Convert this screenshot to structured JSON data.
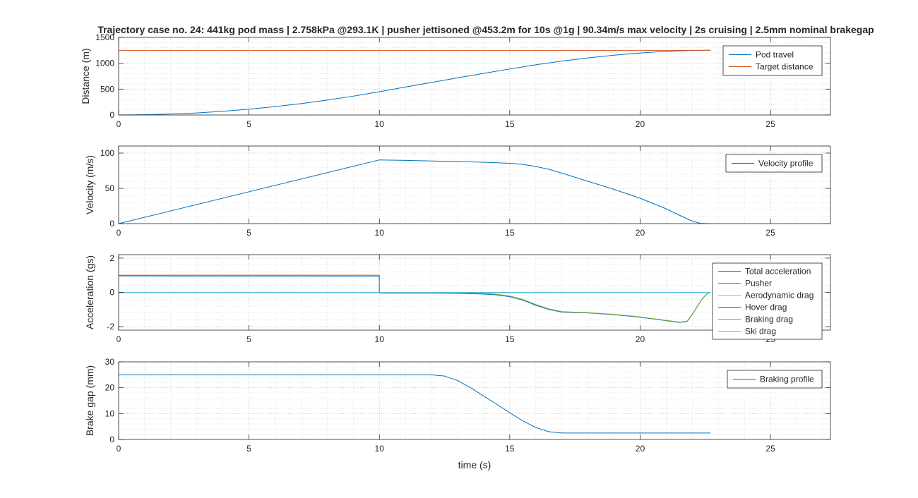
{
  "figure": {
    "title": "Trajectory case no. 24: 441kg pod mass | 2.758kPa @293.1K | pusher jettisoned @453.2m for 10s @1g | 90.34m/s max velocity | 2s cruising | 2.5mm nominal brakegap"
  },
  "chart_data": [
    {
      "type": "line",
      "ylabel": "Distance (m)",
      "xlim": [
        0,
        27.3
      ],
      "ylim": [
        0,
        1500
      ],
      "xticks": [
        0,
        5,
        10,
        15,
        20,
        25
      ],
      "yticks": [
        0,
        500,
        1000,
        1500
      ],
      "grid": true,
      "legend_position": "top-right",
      "series": [
        {
          "name": "Pod travel",
          "color": "#0072BD",
          "x": [
            0,
            1,
            2,
            3,
            4,
            5,
            6,
            7,
            8,
            9,
            10,
            11,
            12,
            13,
            14,
            15,
            16,
            17,
            18,
            19,
            20,
            21,
            22,
            22.7
          ],
          "y": [
            0,
            4.5,
            18,
            40,
            72,
            112,
            162,
            220,
            288,
            364,
            450,
            540,
            629,
            717,
            804,
            889,
            970,
            1042,
            1103,
            1155,
            1198,
            1230,
            1248,
            1253
          ]
        },
        {
          "name": "Target distance",
          "color": "#D95319",
          "x": [
            0,
            22.7
          ],
          "y": [
            1250,
            1250
          ]
        }
      ]
    },
    {
      "type": "line",
      "ylabel": "Velocity (m/s)",
      "xlim": [
        0,
        27.3
      ],
      "ylim": [
        0,
        110
      ],
      "xticks": [
        0,
        5,
        10,
        15,
        20,
        25
      ],
      "yticks": [
        0,
        50,
        100
      ],
      "grid": true,
      "legend_position": "top-right",
      "series": [
        {
          "name": "Velocity profile",
          "color": "#0072BD",
          "x": [
            0,
            10,
            11,
            12,
            13,
            14,
            15,
            15.5,
            16,
            16.5,
            17,
            18,
            19,
            20,
            21,
            21.5,
            22,
            22.3,
            22.5,
            22.7
          ],
          "y": [
            0,
            90.3,
            89.6,
            88.8,
            88,
            87,
            85.5,
            84,
            81,
            77,
            71.5,
            60,
            48.5,
            36,
            21,
            12,
            3.5,
            0.5,
            0,
            0
          ]
        }
      ]
    },
    {
      "type": "line",
      "ylabel": "Acceleration (gs)",
      "xlim": [
        0,
        27.3
      ],
      "ylim": [
        -2.2,
        2.2
      ],
      "xticks": [
        0,
        5,
        10,
        15,
        20,
        25
      ],
      "yticks": [
        -2,
        0,
        2
      ],
      "grid": true,
      "legend_position": "right",
      "series": [
        {
          "name": "Total acceleration",
          "color": "#0072BD",
          "x": [
            0,
            9.99,
            10,
            11,
            12,
            13,
            14,
            14.5,
            15,
            15.5,
            16,
            16.5,
            17,
            18,
            19,
            20,
            20.5,
            21,
            21.5,
            21.8,
            22,
            22.2,
            22.4,
            22.6,
            22.7
          ],
          "y": [
            0.96,
            0.95,
            -0.05,
            -0.05,
            -0.05,
            -0.06,
            -0.1,
            -0.15,
            -0.25,
            -0.45,
            -0.75,
            -1.0,
            -1.15,
            -1.2,
            -1.3,
            -1.45,
            -1.55,
            -1.65,
            -1.75,
            -1.7,
            -1.3,
            -0.8,
            -0.35,
            -0.05,
            0
          ]
        },
        {
          "name": "Pusher",
          "color": "#D95319",
          "x": [
            0,
            10,
            10,
            22.7
          ],
          "y": [
            1.0,
            1.0,
            0,
            0
          ]
        },
        {
          "name": "Aerodynamic drag",
          "color": "#EDB120",
          "x": [
            0,
            10,
            15,
            20,
            22.7
          ],
          "y": [
            -0.02,
            -0.03,
            -0.03,
            -0.01,
            0
          ]
        },
        {
          "name": "Hover drag",
          "color": "#7E2F8E",
          "x": [
            0,
            22.7
          ],
          "y": [
            0,
            0
          ]
        },
        {
          "name": "Braking drag",
          "color": "#77AC30",
          "x": [
            0,
            12,
            13,
            14,
            14.5,
            15,
            15.5,
            16,
            16.5,
            17,
            18,
            19,
            20,
            20.5,
            21,
            21.5,
            21.8,
            22,
            22.2,
            22.4,
            22.6,
            22.7
          ],
          "y": [
            0,
            0,
            -0.02,
            -0.06,
            -0.11,
            -0.21,
            -0.41,
            -0.71,
            -0.96,
            -1.12,
            -1.18,
            -1.28,
            -1.43,
            -1.53,
            -1.63,
            -1.73,
            -1.68,
            -1.28,
            -0.78,
            -0.33,
            -0.04,
            0
          ]
        },
        {
          "name": "Ski drag",
          "color": "#4DBEEE",
          "x": [
            0,
            22.7
          ],
          "y": [
            0,
            0
          ]
        }
      ]
    },
    {
      "type": "line",
      "ylabel": "Brake gap (mm)",
      "xlabel": "time (s)",
      "xlim": [
        0,
        27.3
      ],
      "ylim": [
        0,
        30
      ],
      "xticks": [
        0,
        5,
        10,
        15,
        20,
        25
      ],
      "yticks": [
        0,
        10,
        20,
        30
      ],
      "grid": true,
      "legend_position": "top-right",
      "series": [
        {
          "name": "Braking profile",
          "color": "#0072BD",
          "x": [
            0,
            12,
            12.5,
            13,
            13.5,
            14,
            14.5,
            15,
            15.5,
            16,
            16.5,
            17,
            17.5,
            22.7
          ],
          "y": [
            25,
            25,
            24.5,
            22.8,
            20,
            16.8,
            13.6,
            10.3,
            7.2,
            4.6,
            3.0,
            2.5,
            2.5,
            2.5
          ]
        }
      ]
    }
  ]
}
